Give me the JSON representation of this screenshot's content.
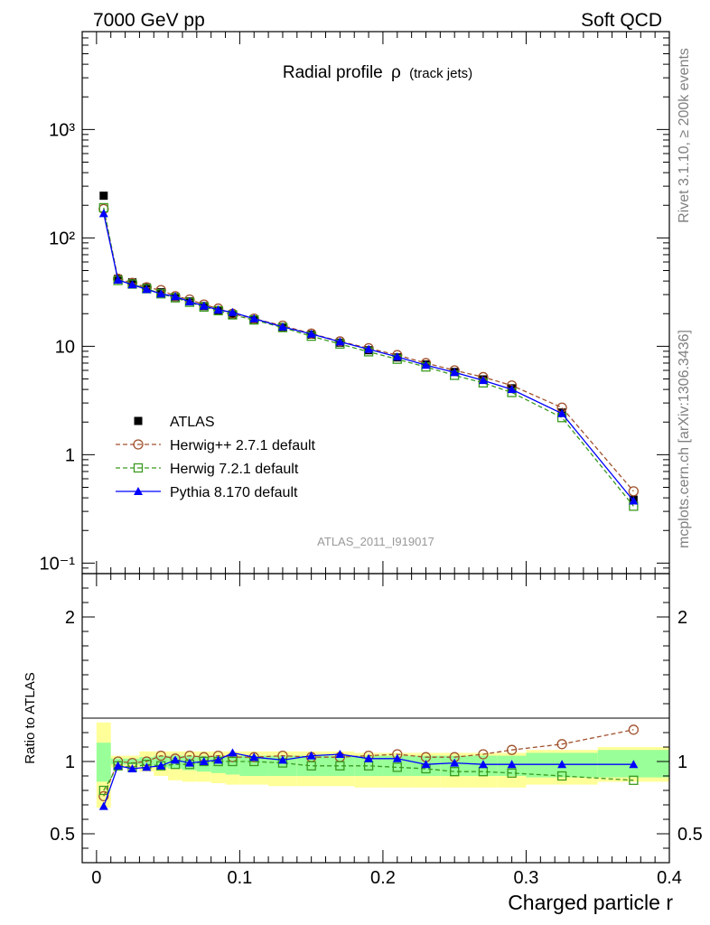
{
  "header": {
    "left": "7000 GeV pp",
    "right": "Soft QCD"
  },
  "side_labels": {
    "top": "Rivet 3.1.10, ≥ 200k events",
    "bottom": "mcplots.cern.ch [arXiv:1306.3436]"
  },
  "colors": {
    "data": "#000000",
    "herwigpp": "#a0522d",
    "herwig7": "#3a9a1f",
    "pythia": "#0000ff",
    "band_outer": "#ffff99",
    "band_inner": "#99ff99",
    "watermark": "#999999"
  },
  "chart_data": [
    {
      "type": "line",
      "panel": "main",
      "title": "Radial profile",
      "title_symbol": "ρ",
      "title_suffix": "(track jets)",
      "watermark": "ATLAS_2011_I919017",
      "yscale": "log",
      "ylim": [
        0.08,
        8000
      ],
      "xlim": [
        -0.01,
        0.4
      ],
      "ytick_labels": [
        "10⁻¹",
        "1",
        "10",
        "10²",
        "10³"
      ],
      "ytick_values": [
        0.1,
        1,
        10,
        100,
        1000
      ],
      "x": [
        0.005,
        0.015,
        0.025,
        0.035,
        0.045,
        0.055,
        0.065,
        0.075,
        0.085,
        0.095,
        0.11,
        0.13,
        0.15,
        0.17,
        0.19,
        0.21,
        0.23,
        0.25,
        0.27,
        0.29,
        0.325,
        0.375
      ],
      "legend": {
        "position": "middle-left",
        "entries": [
          "ATLAS",
          "Herwig++ 2.7.1 default",
          "Herwig 7.2.1 default",
          "Pythia 8.170 default"
        ]
      },
      "series": [
        {
          "name": "ATLAS",
          "marker": "square-filled",
          "values": [
            245,
            42,
            39,
            35,
            31.5,
            28.5,
            26,
            23.5,
            21.5,
            19.5,
            17.5,
            15,
            12.8,
            10.8,
            9.2,
            7.9,
            6.8,
            5.8,
            4.95,
            4.1,
            2.45,
            0.385
          ]
        },
        {
          "name": "Herwig++ 2.7.1 default",
          "marker": "circle-open",
          "dashed": true,
          "values": [
            185,
            42,
            38.5,
            35,
            33,
            29,
            27,
            24.3,
            22.3,
            20,
            18,
            15.5,
            13.1,
            11.1,
            9.6,
            8.3,
            7.0,
            6.0,
            5.2,
            4.35,
            2.72,
            0.46
          ]
        },
        {
          "name": "Herwig 7.2.1 default",
          "marker": "square-open",
          "dashed": true,
          "values": [
            190,
            40.5,
            37.5,
            34,
            30.5,
            28,
            25.5,
            23,
            21.3,
            19.5,
            17.5,
            14.9,
            12.4,
            10.5,
            8.9,
            7.6,
            6.45,
            5.4,
            4.6,
            3.75,
            2.2,
            0.335
          ]
        },
        {
          "name": "Pythia 8.170 default",
          "marker": "triangle-filled",
          "dashed": false,
          "values": [
            168,
            41,
            37,
            33.5,
            30.5,
            28.8,
            25.8,
            23.6,
            21.7,
            20.6,
            18,
            15.1,
            13.0,
            11.0,
            9.4,
            8.0,
            6.7,
            5.75,
            4.85,
            4.0,
            2.4,
            0.375
          ]
        }
      ]
    },
    {
      "type": "line",
      "panel": "ratio",
      "ylabel": "Ratio to ATLAS",
      "xlabel": "Charged particle r",
      "ylim": [
        0.3,
        2.3
      ],
      "xlim": [
        -0.01,
        0.4
      ],
      "ytick_labels": [
        "0.5",
        "1",
        "2"
      ],
      "ytick_values": [
        0.5,
        1,
        2
      ],
      "xtick_labels": [
        "0",
        "0.1",
        "0.2",
        "0.3",
        "0.4"
      ],
      "xtick_values": [
        0,
        0.1,
        0.2,
        0.3,
        0.4
      ],
      "band_edges": [
        0,
        0.01,
        0.02,
        0.03,
        0.04,
        0.05,
        0.06,
        0.07,
        0.08,
        0.09,
        0.1,
        0.12,
        0.14,
        0.16,
        0.18,
        0.2,
        0.22,
        0.24,
        0.26,
        0.28,
        0.3,
        0.35,
        0.4
      ],
      "band_outer_low": [
        0.68,
        0.96,
        0.96,
        0.93,
        0.9,
        0.87,
        0.86,
        0.86,
        0.85,
        0.84,
        0.84,
        0.83,
        0.83,
        0.83,
        0.82,
        0.82,
        0.82,
        0.82,
        0.82,
        0.82,
        0.84,
        0.86
      ],
      "band_outer_high": [
        1.27,
        1.04,
        1.04,
        1.07,
        1.07,
        1.07,
        1.07,
        1.07,
        1.07,
        1.07,
        1.07,
        1.07,
        1.07,
        1.07,
        1.06,
        1.06,
        1.06,
        1.06,
        1.06,
        1.06,
        1.08,
        1.1
      ],
      "band_inner_low": [
        0.86,
        0.98,
        0.98,
        0.97,
        0.96,
        0.95,
        0.94,
        0.93,
        0.92,
        0.91,
        0.9,
        0.9,
        0.9,
        0.9,
        0.9,
        0.9,
        0.9,
        0.9,
        0.9,
        0.9,
        0.89,
        0.89
      ],
      "band_inner_high": [
        1.13,
        1.02,
        1.02,
        1.03,
        1.04,
        1.04,
        1.04,
        1.04,
        1.04,
        1.04,
        1.04,
        1.04,
        1.04,
        1.04,
        1.04,
        1.04,
        1.04,
        1.04,
        1.04,
        1.04,
        1.06,
        1.08
      ],
      "x": [
        0.005,
        0.015,
        0.025,
        0.035,
        0.045,
        0.055,
        0.065,
        0.075,
        0.085,
        0.095,
        0.11,
        0.13,
        0.15,
        0.17,
        0.19,
        0.21,
        0.23,
        0.25,
        0.27,
        0.29,
        0.325,
        0.375
      ],
      "series": [
        {
          "name": "Herwig++ 2.7.1 default",
          "marker": "circle-open",
          "dashed": true,
          "values": [
            0.76,
            1.0,
            0.99,
            1.0,
            1.04,
            1.02,
            1.04,
            1.03,
            1.04,
            1.03,
            1.03,
            1.04,
            1.03,
            1.03,
            1.04,
            1.05,
            1.03,
            1.03,
            1.05,
            1.08,
            1.12,
            1.22
          ]
        },
        {
          "name": "Herwig 7.2.1 default",
          "marker": "square-open",
          "dashed": true,
          "values": [
            0.8,
            0.97,
            0.96,
            0.98,
            0.97,
            0.98,
            0.98,
            1.0,
            1.0,
            1.0,
            1.0,
            0.99,
            0.97,
            0.97,
            0.97,
            0.96,
            0.95,
            0.93,
            0.93,
            0.92,
            0.9,
            0.87
          ]
        },
        {
          "name": "Pythia 8.170 default",
          "marker": "triangle-filled",
          "dashed": false,
          "values": [
            0.69,
            0.97,
            0.95,
            0.96,
            0.97,
            1.01,
            0.99,
            1.0,
            1.01,
            1.06,
            1.03,
            1.01,
            1.04,
            1.05,
            1.02,
            1.02,
            0.98,
            0.99,
            0.98,
            0.98,
            0.98,
            0.98
          ]
        }
      ]
    }
  ]
}
